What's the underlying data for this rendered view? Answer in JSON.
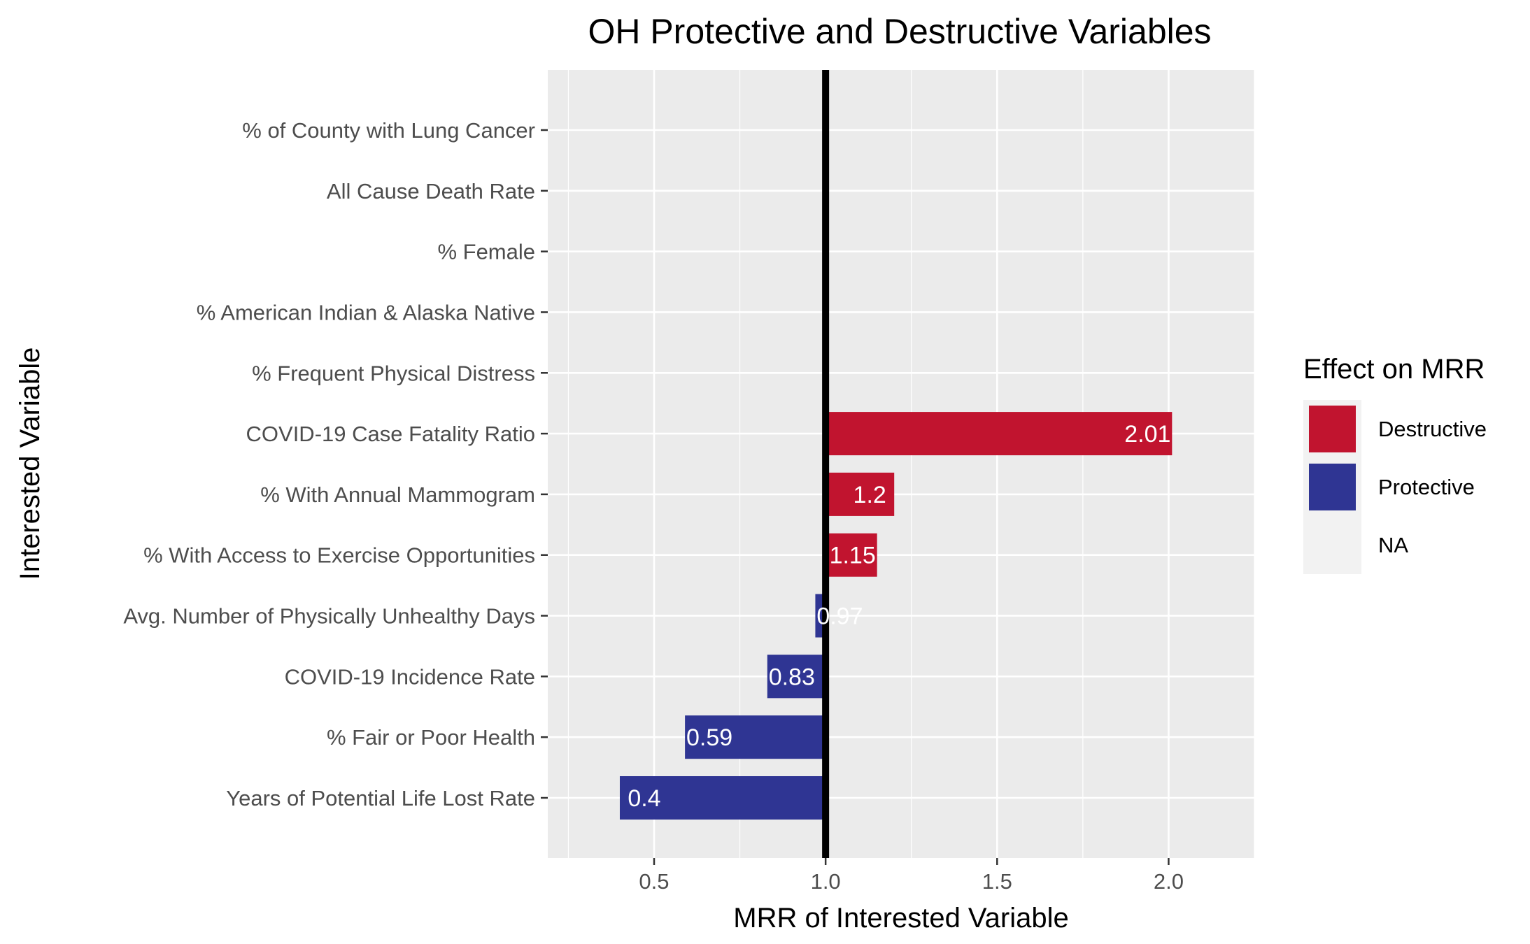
{
  "chart_data": {
    "type": "bar",
    "orientation": "horizontal",
    "title": "OH Protective and Destructive Variables",
    "xlabel": "MRR of Interested Variable",
    "ylabel": "Interested Variable",
    "xlim": [
      0.19,
      2.25
    ],
    "xticks": [
      0.5,
      1.0,
      1.5,
      2.0
    ],
    "xtick_labels": [
      "0.5",
      "1.0",
      "1.5",
      "2.0"
    ],
    "reference_line": 1.0,
    "grid": true,
    "categories": [
      "% of County with Lung Cancer",
      "All Cause Death Rate",
      "% Female",
      "% American Indian & Alaska Native",
      "% Frequent Physical Distress",
      "COVID-19 Case Fatality Ratio",
      "% With Annual Mammogram",
      "% With Access to Exercise Opportunities",
      "Avg. Number of Physically Unhealthy Days",
      "COVID-19 Incidence Rate",
      "% Fair or Poor Health",
      "Years of Potential Life Lost Rate"
    ],
    "values": [
      null,
      null,
      null,
      null,
      null,
      2.01,
      1.2,
      1.15,
      0.97,
      0.83,
      0.59,
      0.4
    ],
    "labels": [
      "",
      "",
      "",
      "",
      "",
      "2.01",
      "1.2",
      "1.15",
      "0.97",
      "0.83",
      "0.59",
      "0.4"
    ],
    "effects": [
      "NA",
      "NA",
      "NA",
      "NA",
      "NA",
      "Destructive",
      "Destructive",
      "Destructive",
      "Protective",
      "Protective",
      "Protective",
      "Protective"
    ],
    "legend": {
      "title": "Effect on MRR",
      "position": "right",
      "items": [
        {
          "name": "Destructive",
          "color": "#C1142F"
        },
        {
          "name": "Protective",
          "color": "#2F3593"
        },
        {
          "name": "NA",
          "color": "#F0F0F0"
        }
      ]
    }
  }
}
